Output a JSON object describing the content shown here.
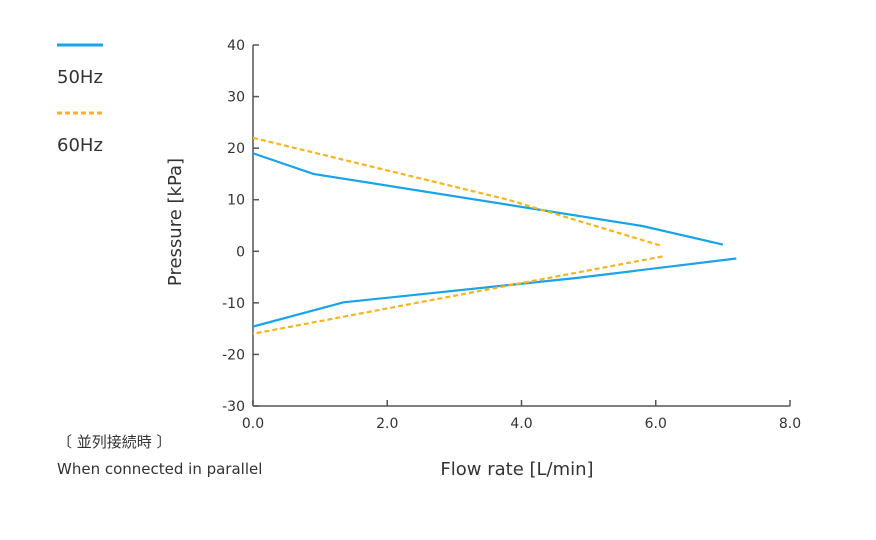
{
  "chart_data": {
    "type": "line",
    "title": "",
    "xlabel": "Flow rate [L/min]",
    "ylabel": "Pressure [kPa]",
    "xlim": [
      0,
      8
    ],
    "ylim": [
      -30,
      40
    ],
    "xticks": [
      "0.0",
      "2.0",
      "4.0",
      "6.0",
      "8.0"
    ],
    "yticks": [
      "40",
      "30",
      "20",
      "10",
      "0",
      "-10",
      "-20",
      "-30"
    ],
    "grid": false,
    "legend_position": "top-left",
    "note": [
      "〔 並列接続時 〕",
      "When connected in parallel"
    ],
    "series": [
      {
        "name": "50Hz",
        "color": "#1aa3e8",
        "style": "solid",
        "x": [
          0,
          0.9,
          5.8,
          7.0
        ],
        "y": [
          19,
          15,
          4.9,
          1.3
        ],
        "x2": [
          7.2,
          4.8,
          1.35,
          0
        ],
        "y2": [
          -1.4,
          -5.2,
          -9.9,
          -14.6
        ]
      },
      {
        "name": "60Hz",
        "color": "#f5b520",
        "style": "dashed",
        "x": [
          0,
          3.8,
          6.1
        ],
        "y": [
          22,
          10,
          1.0
        ],
        "x2": [
          6.1,
          0
        ],
        "y2": [
          -1.0,
          -16
        ]
      }
    ]
  }
}
